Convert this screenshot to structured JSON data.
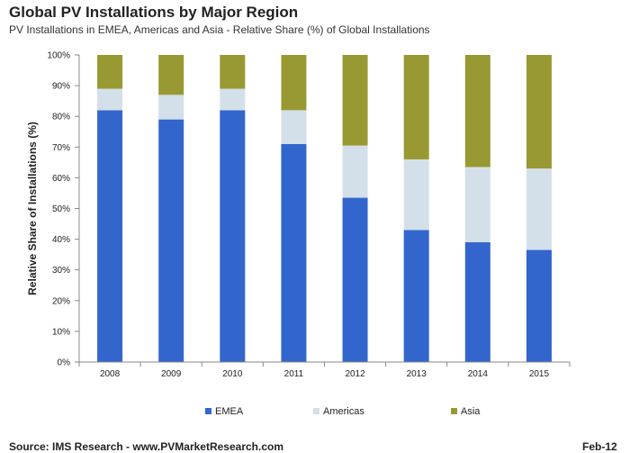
{
  "header": {
    "title": "Global PV Installations by Major Region",
    "subtitle": "PV Installations in EMEA, Americas and Asia - Relative Share (%) of Global Installations"
  },
  "footer": {
    "source": "Source: IMS Research - www.PVMarketResearch.com",
    "date": "Feb-12"
  },
  "chart_data": {
    "type": "bar",
    "stacked": true,
    "title": "Global PV Installations by Major Region",
    "subtitle": "PV Installations in EMEA, Americas and Asia - Relative Share (%) of Global Installations",
    "xlabel": "",
    "ylabel": "Relative Share of Installations (%)",
    "ylim": [
      0,
      100
    ],
    "yticks": [
      "0%",
      "10%",
      "20%",
      "30%",
      "40%",
      "50%",
      "60%",
      "70%",
      "80%",
      "90%",
      "100%"
    ],
    "categories": [
      "2008",
      "2009",
      "2010",
      "2011",
      "2012",
      "2013",
      "2014",
      "2015"
    ],
    "series": [
      {
        "name": "EMEA",
        "color": "#3366cc",
        "values": [
          82,
          79,
          82,
          71,
          53.5,
          43,
          39,
          36.5
        ]
      },
      {
        "name": "Americas",
        "color": "#d3e0ea",
        "values": [
          7,
          8,
          7,
          11,
          17,
          23,
          24.5,
          26.5
        ]
      },
      {
        "name": "Asia",
        "color": "#999933",
        "values": [
          11,
          13,
          11,
          18,
          29.5,
          34,
          36.5,
          37
        ]
      }
    ],
    "legend_position": "bottom",
    "grid": false
  }
}
